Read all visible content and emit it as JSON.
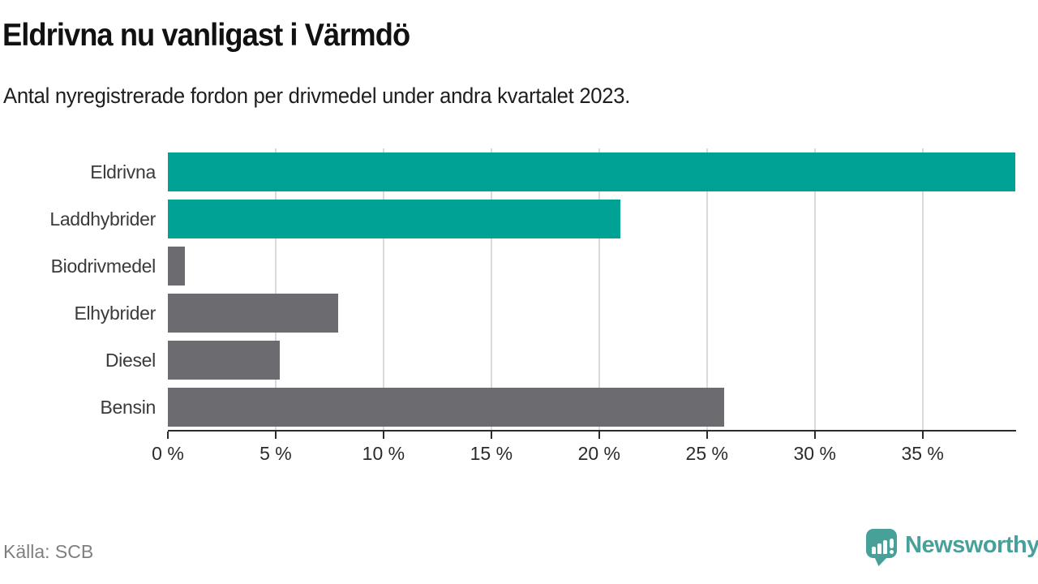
{
  "chart_data": {
    "type": "bar",
    "orientation": "horizontal",
    "title": "Eldrivna nu vanligast i Värmdö",
    "subtitle": "Antal nyregistrerade fordon per drivmedel under andra kvartalet 2023.",
    "categories": [
      "Eldrivna",
      "Laddhybrider",
      "Biodrivmedel",
      "Elhybrider",
      "Diesel",
      "Bensin"
    ],
    "values": [
      39.3,
      21.0,
      0.8,
      7.9,
      5.2,
      25.8
    ],
    "unit": "%",
    "xlim": [
      0,
      39.3
    ],
    "x_ticks": [
      0,
      5,
      10,
      15,
      20,
      25,
      30,
      35
    ],
    "x_tick_labels": [
      "0 %",
      "5 %",
      "10 %",
      "15 %",
      "20 %",
      "25 %",
      "30 %",
      "35 %"
    ],
    "bar_colors": [
      "#00a296",
      "#00a296",
      "#6c6b70",
      "#6c6b70",
      "#6c6b70",
      "#6c6b70"
    ],
    "grid": true,
    "legend": false,
    "xlabel": "",
    "ylabel": ""
  },
  "colors": {
    "accent_teal": "#00a296",
    "bar_gray": "#6c6b70",
    "grid": "#dadada",
    "axis": "#2b2b2b",
    "label": "#3a3a3a",
    "source_gray": "#7f7f7f",
    "logo_teal": "#47a19a"
  },
  "footer": {
    "source": "Källa: SCB",
    "brand": "Newsworthy"
  }
}
